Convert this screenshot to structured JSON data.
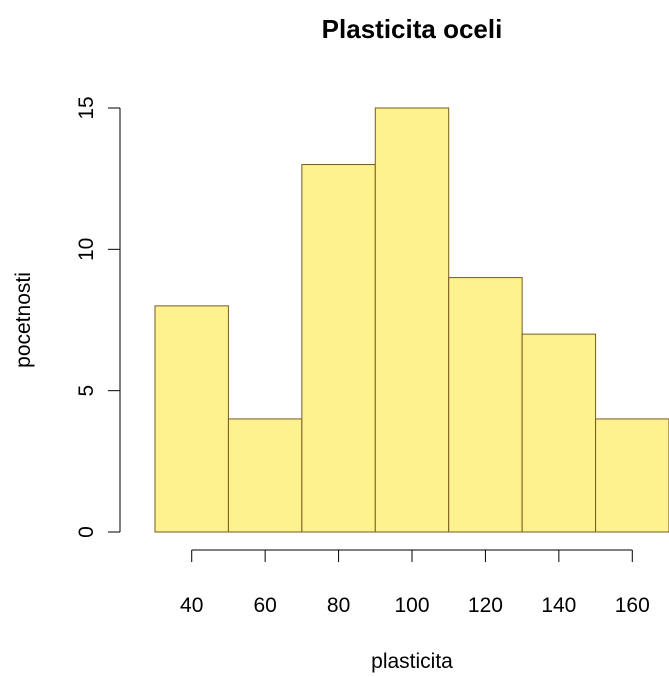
{
  "chart_data": {
    "type": "bar",
    "title": "Plasticita oceli",
    "xlabel": "plasticita",
    "ylabel": "pocetnosti",
    "bins": [
      {
        "from": 30,
        "to": 50,
        "count": 8
      },
      {
        "from": 50,
        "to": 70,
        "count": 4
      },
      {
        "from": 70,
        "to": 90,
        "count": 13
      },
      {
        "from": 90,
        "to": 110,
        "count": 15
      },
      {
        "from": 110,
        "to": 130,
        "count": 9
      },
      {
        "from": 130,
        "to": 150,
        "count": 7
      },
      {
        "from": 150,
        "to": 170,
        "count": 4
      }
    ],
    "xticks": [
      40,
      60,
      80,
      100,
      120,
      140,
      160
    ],
    "yticks": [
      0,
      5,
      10,
      15
    ],
    "xlim": [
      30,
      170
    ],
    "ylim": [
      0,
      15
    ],
    "grid": false,
    "colors": {
      "bar_fill": "#FDF28E",
      "bar_stroke": "#7A5A1E",
      "axis": "#000000"
    }
  }
}
